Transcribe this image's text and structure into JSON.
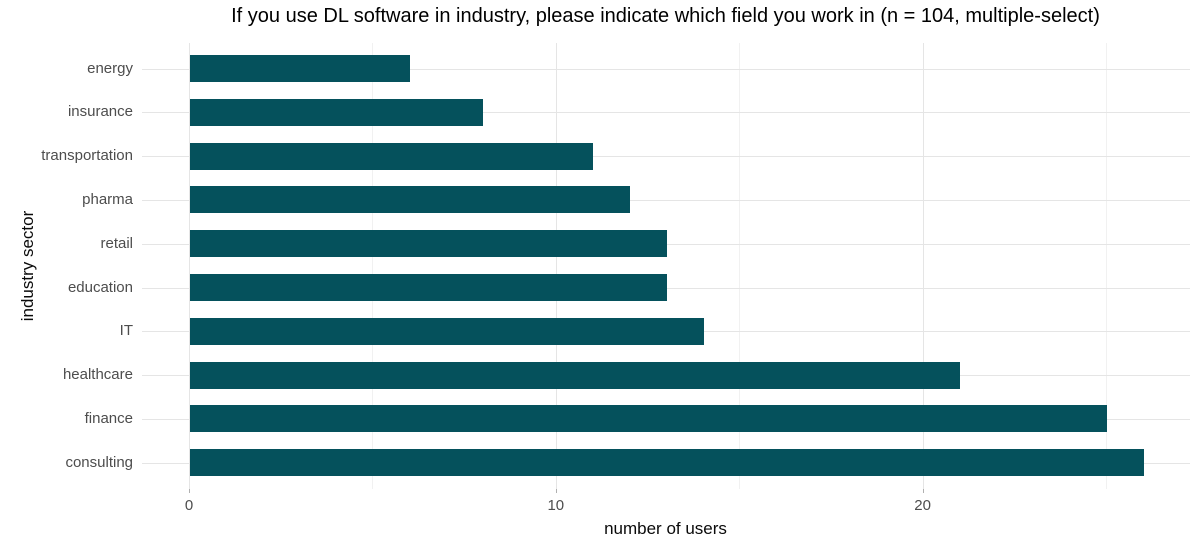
{
  "chart_data": {
    "type": "bar",
    "orientation": "horizontal",
    "title": "If you use DL software in industry, please indicate which field you work in (n = 104, multiple-select)",
    "xlabel": "number of users",
    "ylabel": "industry sector",
    "categories": [
      "energy",
      "insurance",
      "transportation",
      "pharma",
      "retail",
      "education",
      "IT",
      "healthcare",
      "finance",
      "consulting"
    ],
    "values": [
      6,
      8,
      11,
      12,
      13,
      13,
      14,
      21,
      25,
      26
    ],
    "xlim": [
      0,
      26
    ],
    "x_major_ticks": [
      {
        "label": "0",
        "value": 0
      },
      {
        "label": "10",
        "value": 10
      },
      {
        "label": "20",
        "value": 20
      }
    ],
    "x_minor_ticks": [
      5,
      15,
      25
    ],
    "grid": true,
    "legend": false
  },
  "colors": {
    "bar": "#05515c",
    "major_grid": "#e5e5e5",
    "minor_grid": "#f1f1f1",
    "tick_mark": "#b0b0b0",
    "axis_text": "#4d4d4d",
    "title_text": "#000000"
  }
}
